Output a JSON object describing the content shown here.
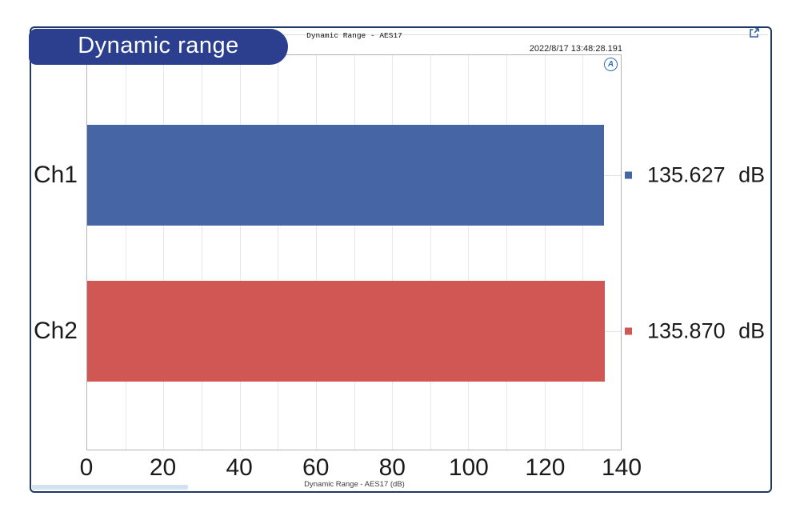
{
  "badge": {
    "label": "Dynamic range"
  },
  "window": {
    "title": "Dynamic Range - AES17",
    "timestamp": "2022/8/17 13:48:28.191"
  },
  "icons": {
    "external_link": "open-external-window",
    "ap_logo_letter": "A"
  },
  "colors": {
    "frame": "#1f3864",
    "badge_bg": "#2b3f8e",
    "ch1_bar": "#4565a4",
    "ch2_bar": "#d05754",
    "plot_border": "#b4b4b4",
    "gridline": "#e8e8e8"
  },
  "chart_data": {
    "type": "bar",
    "orientation": "horizontal",
    "title": "Dynamic Range - AES17",
    "categories": [
      "Ch1",
      "Ch2"
    ],
    "values": [
      135.627,
      135.87
    ],
    "value_labels": [
      "135.627 dB",
      "135.870 dB"
    ],
    "series_colors": [
      "#4565a4",
      "#d05754"
    ],
    "xlabel": "Dynamic Range - AES17 (dB)",
    "xlim": [
      0,
      140
    ],
    "x_ticks": [
      0,
      20,
      40,
      60,
      80,
      100,
      120,
      140
    ],
    "x_minor_grid_step": 10,
    "grid": true,
    "legend": false,
    "unit": "dB"
  }
}
